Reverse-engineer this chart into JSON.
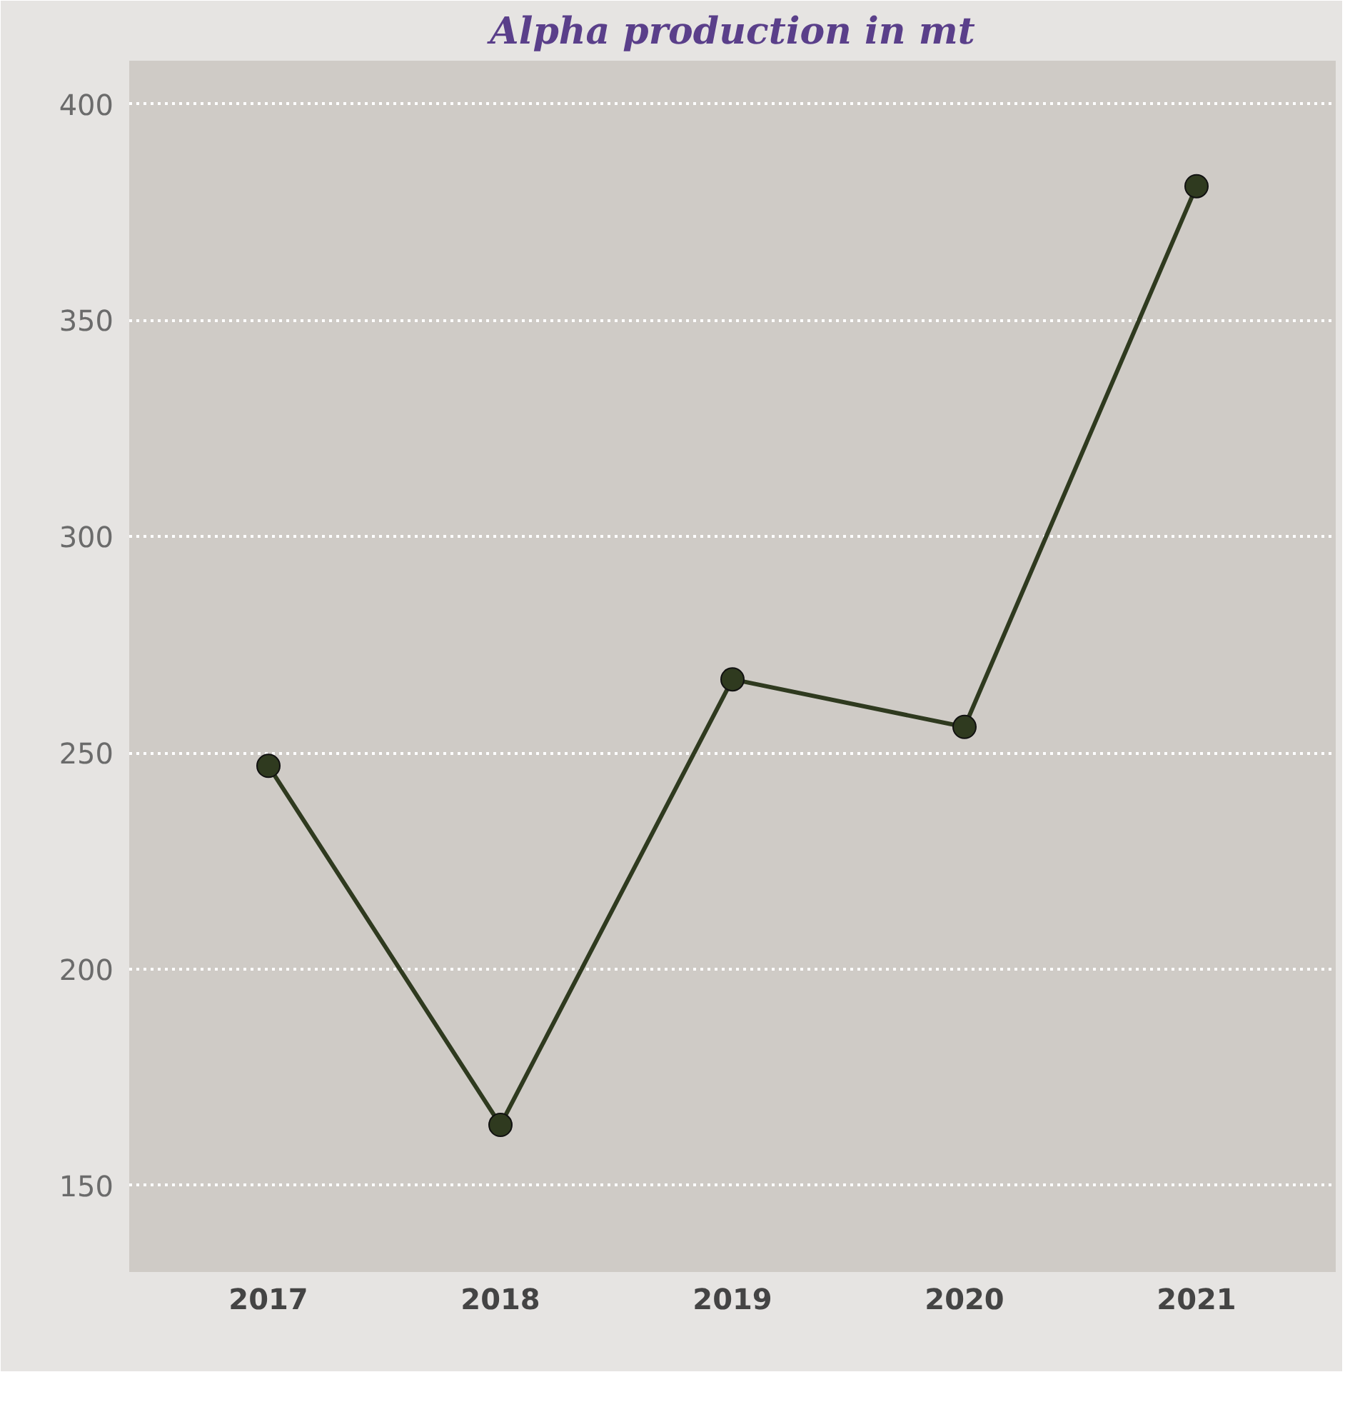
{
  "chart_data": {
    "type": "line",
    "title": "Alpha production in mt",
    "categories": [
      "2017",
      "2018",
      "2019",
      "2020",
      "2021"
    ],
    "series": [
      {
        "color": "#2f3a1f",
        "values": [
          247,
          164,
          267,
          256,
          381
        ]
      }
    ],
    "ylim": [
      130,
      410
    ],
    "yticks": [
      150,
      200,
      250,
      300,
      350,
      400
    ],
    "grid": "y",
    "marker": "circle",
    "line_style": "solid"
  }
}
